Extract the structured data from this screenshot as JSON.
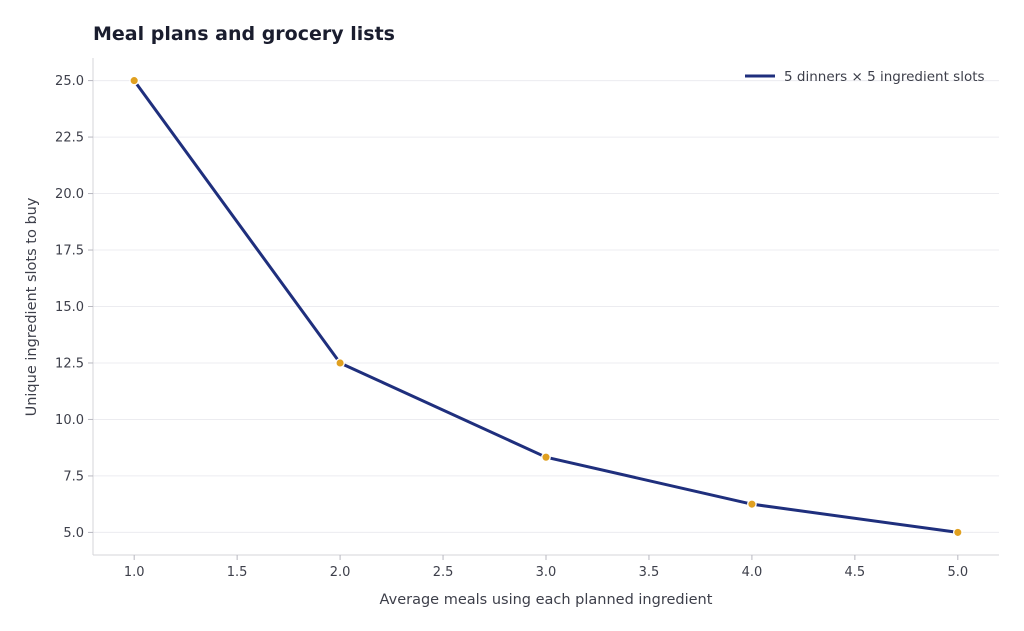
{
  "chart_data": {
    "type": "line",
    "title": "Meal plans and grocery lists",
    "xlabel": "Average meals using each planned ingredient",
    "ylabel": "Unique ingredient slots to buy",
    "xlim": [
      0.8,
      5.2
    ],
    "ylim": [
      4.0,
      26.0
    ],
    "x_ticks": [
      "1.0",
      "1.5",
      "2.0",
      "2.5",
      "3.0",
      "3.5",
      "4.0",
      "4.5",
      "5.0"
    ],
    "y_ticks": [
      "5.0",
      "7.5",
      "10.0",
      "12.5",
      "15.0",
      "17.5",
      "20.0",
      "22.5",
      "25.0"
    ],
    "grid": true,
    "legend_position": "top-right",
    "series": [
      {
        "name": "5 dinners × 5 ingredient slots",
        "x": [
          1.0,
          2.0,
          3.0,
          4.0,
          5.0
        ],
        "y": [
          25.0,
          12.5,
          8.33,
          6.25,
          5.0
        ],
        "line_color": "#1f2f7d",
        "marker_color": "#e0a020"
      }
    ]
  }
}
